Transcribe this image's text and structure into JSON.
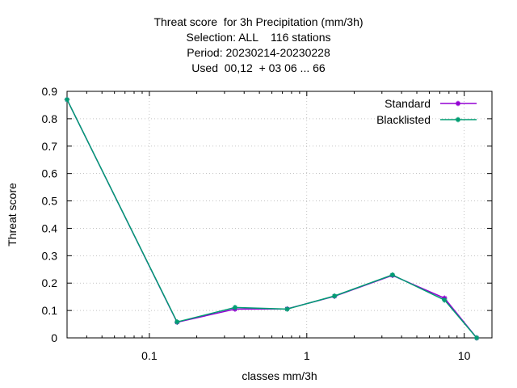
{
  "chart_data": {
    "type": "line",
    "title_lines": [
      "Threat score  for 3h Precipitation (mm/3h)",
      "Selection: ALL    116 stations",
      "Period: 20230214-20230228",
      "Used  00,12  + 03 06 ... 66"
    ],
    "xlabel": "classes mm/3h",
    "ylabel": "Threat score",
    "xscale": "log",
    "xlim": [
      0.03,
      15
    ],
    "ylim": [
      0,
      0.9
    ],
    "grid": true,
    "legend_position": "top-right",
    "y_ticks": [
      0,
      0.1,
      0.2,
      0.3,
      0.4,
      0.5,
      0.6,
      0.7,
      0.8,
      0.9
    ],
    "y_tick_labels": [
      "0",
      "0.1",
      "0.2",
      "0.3",
      "0.4",
      "0.5",
      "0.6",
      "0.7",
      "0.8",
      "0.9"
    ],
    "x_major_ticks": [
      0.1,
      1,
      10
    ],
    "x_major_tick_labels": [
      "0.1",
      "1",
      "10"
    ],
    "series": [
      {
        "name": "Standard",
        "color": "#9400d3",
        "x": [
          0.03,
          0.15,
          0.35,
          0.75,
          1.5,
          3.5,
          7.5,
          12
        ],
        "y": [
          0.87,
          0.057,
          0.105,
          0.106,
          0.152,
          0.228,
          0.145,
          0.0
        ]
      },
      {
        "name": "Blacklisted",
        "color": "#009e73",
        "x": [
          0.03,
          0.15,
          0.35,
          0.75,
          1.5,
          3.5,
          7.5,
          12
        ],
        "y": [
          0.87,
          0.058,
          0.111,
          0.105,
          0.153,
          0.23,
          0.138,
          0.0
        ]
      }
    ]
  }
}
